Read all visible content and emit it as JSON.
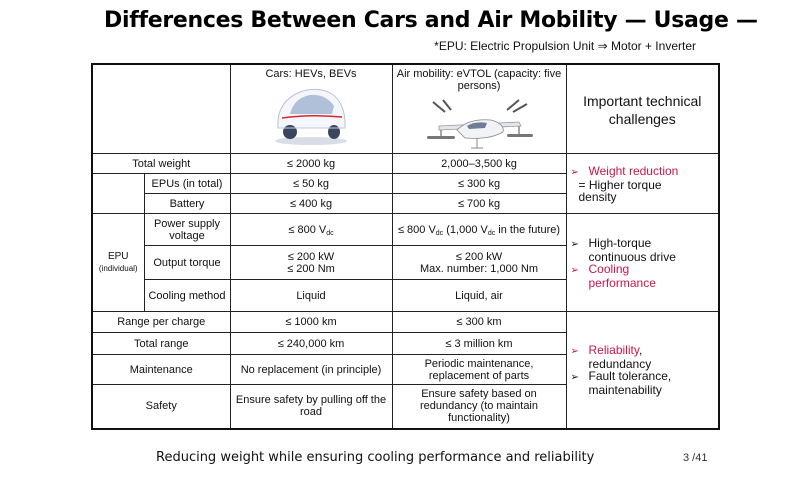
{
  "title": "Differences Between Cars and Air Mobility — Usage —",
  "note": "*EPU: Electric Propulsion Unit ⇒ Motor + Inverter",
  "headers": {
    "cars": "Cars: HEVs, BEVs",
    "air": "Air mobility: eVTOL (capacity: five persons)",
    "challenges": "Important technical challenges"
  },
  "rows": {
    "total_weight": {
      "label": "Total weight",
      "cars": "≤ 2000 kg",
      "air": "2,000–3,500 kg"
    },
    "epus_total": {
      "label": "EPUs (in total)",
      "cars": "≤ 50 kg",
      "air": "≤ 300 kg"
    },
    "battery": {
      "label": "Battery",
      "cars": "≤ 400 kg",
      "air": "≤ 700 kg"
    },
    "epu_group": {
      "label": "EPU",
      "sub": "(individual)"
    },
    "power_supply": {
      "label": "Power supply voltage",
      "cars_pre": "≤ 800 V",
      "cars_sub": "dc",
      "air_pre": "≤ 800 V",
      "air_sub": "dc",
      "air_mid": " (1,000 V",
      "air_sub2": "dc",
      "air_post": " in the future)"
    },
    "output_torque": {
      "label": "Output torque",
      "cars_l1": "≤ 200 kW",
      "cars_l2": "≤ 200 Nm",
      "air_l1": "≤ 200 kW",
      "air_l2": "Max. number: 1,000 Nm"
    },
    "cooling": {
      "label": "Cooling method",
      "cars": "Liquid",
      "air": "Liquid, air"
    },
    "range": {
      "label": "Range per charge",
      "cars": "≤ 1000 km",
      "air": "≤ 300 km"
    },
    "total_range": {
      "label": "Total range",
      "cars": "≤ 240,000 km",
      "air": "≤ 3 million km"
    },
    "maintenance": {
      "label": "Maintenance",
      "cars": "No replacement (in principle)",
      "air": "Periodic maintenance, replacement of parts"
    },
    "safety": {
      "label": "Safety",
      "cars": "Ensure safety by pulling off the road",
      "air": "Ensure safety based on redundancy (to maintain functionality)"
    }
  },
  "challenges": {
    "weight": {
      "item1": "Weight reduction",
      "cont1": "= Higher torque",
      "cont2": "density"
    },
    "epu": {
      "item1_l1": "High-torque",
      "item1_l2": "continuous drive",
      "item2_l1": "Cooling",
      "item2_l2": "performance"
    },
    "reliability": {
      "item1": "Reliability",
      "item1_suffix": ",",
      "item1_l2": "redundancy",
      "item2_l1": "Fault tolerance,",
      "item2_l2": "maintenability"
    }
  },
  "bullet_glyph": "➢",
  "colors": {
    "accent": "#c8174b"
  },
  "footer": "Reducing weight while ensuring cooling performance and reliability",
  "page": "3 /41"
}
